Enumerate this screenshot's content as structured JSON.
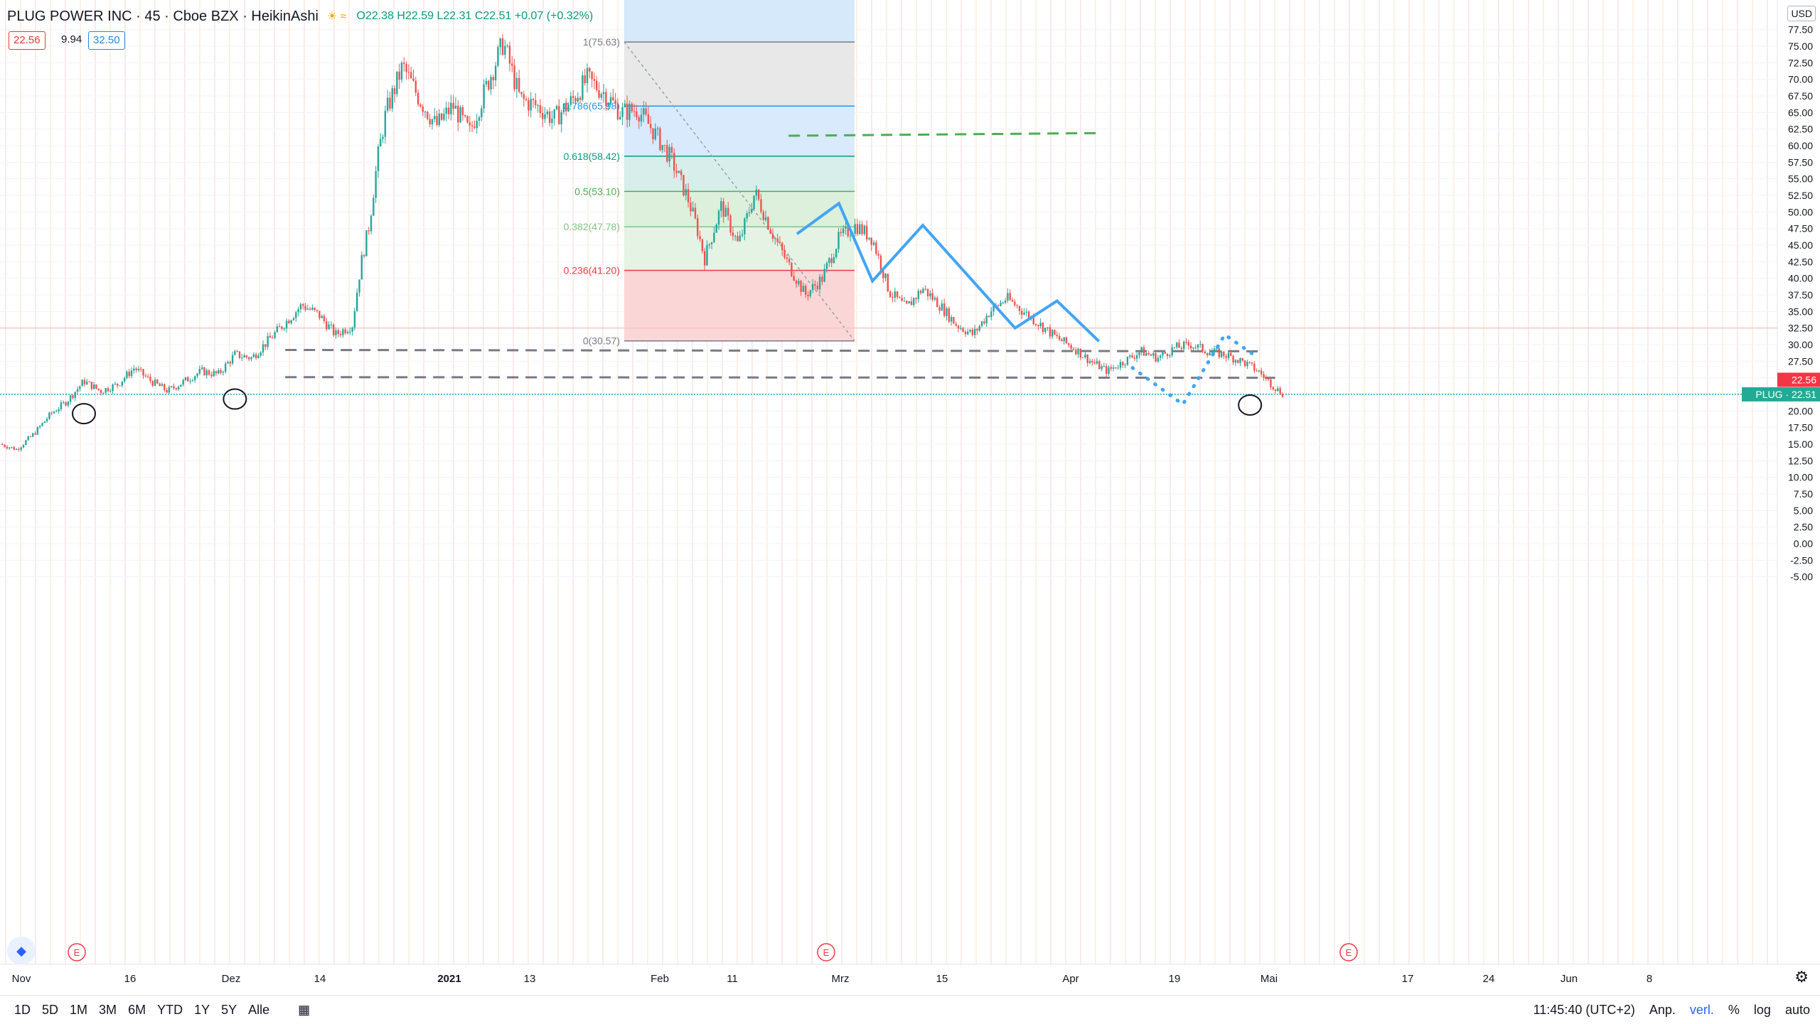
{
  "header": {
    "symbol": "PLUG POWER INC · 45 · Cboe BZX · HeikinAshi",
    "ohlc": "O22.38 H22.59 L22.31 C22.51 +0.07 (+0.32%)",
    "bid": "22.56",
    "spread": "9.94",
    "ask": "32.50",
    "currency": "USD"
  },
  "toolbar": {
    "timeframes": [
      "1D",
      "5D",
      "1M",
      "3M",
      "6M",
      "YTD",
      "1Y",
      "5Y",
      "Alle"
    ],
    "clock": "11:45:40 (UTC+2)",
    "right_items": [
      "Anp.",
      "verl.",
      "%",
      "log",
      "auto"
    ]
  },
  "chart_data": {
    "type": "candlestick",
    "chart_style": "HeikinAshi",
    "symbol": "PLUG",
    "interval": "45",
    "exchange": "Cboe BZX",
    "y_axis": {
      "range": [
        -7.5,
        80
      ],
      "ticks": [
        "77.50",
        "75.00",
        "72.50",
        "70.00",
        "67.50",
        "65.00",
        "62.50",
        "60.00",
        "57.50",
        "55.00",
        "52.50",
        "50.00",
        "47.50",
        "45.00",
        "42.50",
        "40.00",
        "37.50",
        "35.00",
        "32.50",
        "30.00",
        "27.50",
        "25.00",
        "22.50",
        "20.00",
        "17.50",
        "15.00",
        "12.50",
        "10.00",
        "7.50",
        "5.00",
        "2.50",
        "0.00",
        "-2.50",
        "-5.00"
      ]
    },
    "x_axis": {
      "ticks": [
        "Nov",
        "16",
        "Dez",
        "14",
        "2021",
        "13",
        "Feb",
        "11",
        "Mrz",
        "15",
        "Apr",
        "19",
        "Mai",
        "17",
        "24",
        "Jun",
        "8"
      ],
      "tick_bold": [
        false,
        false,
        false,
        false,
        true,
        false,
        false,
        false,
        false,
        false,
        false,
        false,
        false,
        false,
        false,
        false,
        false
      ]
    },
    "price_path": [
      [
        0,
        15.0
      ],
      [
        0.02,
        14.2
      ],
      [
        0.04,
        16.5
      ],
      [
        0.06,
        19.5
      ],
      [
        0.08,
        21.5
      ],
      [
        0.1,
        24.5
      ],
      [
        0.12,
        23.0
      ],
      [
        0.14,
        24.0
      ],
      [
        0.16,
        26.5
      ],
      [
        0.18,
        24.5
      ],
      [
        0.2,
        23.0
      ],
      [
        0.22,
        24.5
      ],
      [
        0.24,
        26.0
      ],
      [
        0.26,
        25.5
      ],
      [
        0.28,
        28.5
      ],
      [
        0.3,
        28.0
      ],
      [
        0.33,
        32.0
      ],
      [
        0.36,
        36.0
      ],
      [
        0.38,
        34.5
      ],
      [
        0.4,
        31.5
      ],
      [
        0.42,
        33.0
      ],
      [
        0.43,
        42.0
      ],
      [
        0.44,
        48.0
      ],
      [
        0.45,
        58.0
      ],
      [
        0.46,
        65.0
      ],
      [
        0.48,
        72.0
      ],
      [
        0.5,
        67.0
      ],
      [
        0.52,
        63.0
      ],
      [
        0.54,
        66.0
      ],
      [
        0.56,
        62.0
      ],
      [
        0.58,
        69.0
      ],
      [
        0.6,
        75.6
      ],
      [
        0.62,
        67.0
      ],
      [
        0.64,
        66.0
      ],
      [
        0.66,
        64.0
      ],
      [
        0.68,
        66.5
      ],
      [
        0.7,
        70.0
      ],
      [
        0.72,
        68.0
      ],
      [
        0.74,
        65.0
      ],
      [
        0.76,
        65.5
      ],
      [
        0.78,
        62.0
      ],
      [
        0.8,
        58.0
      ],
      [
        0.82,
        52.0
      ],
      [
        0.83,
        48.0
      ],
      [
        0.84,
        43.0
      ],
      [
        0.86,
        51.0
      ],
      [
        0.88,
        45.0
      ],
      [
        0.9,
        53.0
      ],
      [
        0.92,
        47.0
      ],
      [
        0.94,
        42.0
      ],
      [
        0.96,
        37.5
      ],
      [
        0.98,
        40.0
      ],
      [
        1.0,
        46.0
      ],
      [
        1.02,
        48.0
      ],
      [
        1.04,
        46.0
      ],
      [
        1.06,
        38.0
      ],
      [
        1.08,
        35.5
      ],
      [
        1.1,
        38.5
      ],
      [
        1.12,
        36.0
      ],
      [
        1.14,
        33.0
      ],
      [
        1.16,
        31.5
      ],
      [
        1.18,
        35.0
      ],
      [
        1.2,
        37.0
      ],
      [
        1.22,
        35.0
      ],
      [
        1.24,
        33.0
      ],
      [
        1.26,
        31.0
      ],
      [
        1.28,
        29.5
      ],
      [
        1.3,
        27.5
      ],
      [
        1.32,
        26.0
      ],
      [
        1.34,
        27.5
      ],
      [
        1.36,
        29.0
      ],
      [
        1.38,
        28.0
      ],
      [
        1.4,
        29.5
      ],
      [
        1.42,
        30.0
      ],
      [
        1.44,
        29.0
      ],
      [
        1.46,
        28.5
      ],
      [
        1.48,
        27.5
      ],
      [
        1.5,
        26.0
      ],
      [
        1.52,
        23.5
      ],
      [
        1.53,
        22.5
      ]
    ],
    "fibonacci": {
      "levels": [
        {
          "ratio": "1",
          "price": 75.63,
          "label": "1(75.63)",
          "color": "#787b86",
          "fill": "#e8e8e8"
        },
        {
          "ratio": "0.786",
          "price": 65.98,
          "label": "0.786(65.98)",
          "color": "#2196f3",
          "fill": "#d8eafc"
        },
        {
          "ratio": "0.618",
          "price": 58.42,
          "label": "0.618(58.42)",
          "color": "#089981",
          "fill": "#d7eeea"
        },
        {
          "ratio": "0.5",
          "price": 53.1,
          "label": "0.5(53.10)",
          "color": "#4caf50",
          "fill": "#dcf0dc"
        },
        {
          "ratio": "0.382",
          "price": 47.78,
          "label": "0.382(47.78)",
          "color": "#81c784",
          "fill": "#e4f3e4"
        },
        {
          "ratio": "0.236",
          "price": 41.2,
          "label": "0.236(41.20)",
          "color": "#f23645",
          "fill": "#fbd6d6"
        },
        {
          "ratio": "0",
          "price": 30.57,
          "label": "0(30.57)",
          "color": "#787b86",
          "fill": "#fbd6d6"
        }
      ]
    },
    "horizontal_lines": [
      {
        "price": 32.5,
        "style": "solid",
        "color": "#f7c6c6"
      },
      {
        "price": 22.51,
        "style": "dotted",
        "color": "#22a0c8"
      }
    ],
    "dashed_trend_lines": [
      {
        "from": [
          0.34,
          29.2
        ],
        "to": [
          1.5,
          29.0
        ],
        "color": "#787b86"
      },
      {
        "from": [
          0.34,
          25.1
        ],
        "to": [
          1.52,
          25.0
        ],
        "color": "#787b86"
      },
      {
        "from": [
          0.94,
          61.5
        ],
        "to": [
          1.31,
          61.9
        ],
        "color": "#4caf50"
      }
    ],
    "blue_pattern": [
      [
        0.95,
        46.7
      ],
      [
        1.0,
        51.3
      ],
      [
        1.04,
        39.6
      ],
      [
        1.1,
        48.0
      ],
      [
        1.21,
        32.5
      ],
      [
        1.26,
        36.6
      ],
      [
        1.31,
        30.5
      ]
    ],
    "blue_projection": [
      [
        1.35,
        26.5
      ],
      [
        1.41,
        21.0
      ],
      [
        1.46,
        31.5
      ],
      [
        1.5,
        28.0
      ]
    ],
    "circles": [
      [
        0.1,
        19.6
      ],
      [
        0.28,
        21.8
      ],
      [
        1.49,
        20.9
      ]
    ],
    "earnings_markers": [
      "E",
      "E",
      "E"
    ],
    "price_labels": [
      {
        "text": "22.56",
        "price": 22.56,
        "color": "#f23645"
      },
      {
        "text": "PLUG · 22.51",
        "price": 22.51,
        "color": "#22ab94"
      }
    ],
    "last_price": 22.51,
    "bid": 22.56,
    "ask": 32.5
  }
}
